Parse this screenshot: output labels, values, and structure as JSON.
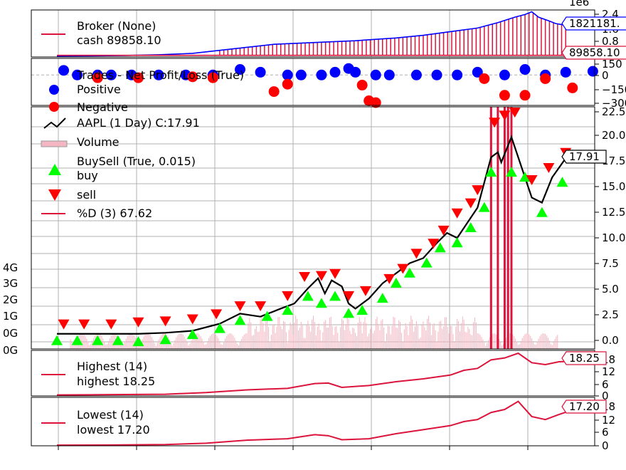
{
  "chart_data": {
    "type": "line",
    "header_label": "1e6",
    "colors": {
      "crimson": "#dc143c",
      "blue": "#0000ff",
      "red": "#ff0000",
      "lime": "#00ff00",
      "black": "#000000",
      "volume_bar": "#f4b6c2",
      "grid": "#b0b0b0"
    },
    "broker": {
      "legend": [
        "Broker (None)",
        "cash 89858.10"
      ],
      "value_tag": "1821181.",
      "cash_tag": "89858.10",
      "yticks": [
        "2.4",
        "1.6",
        "0.8"
      ],
      "value_points": [
        [
          0,
          0.05
        ],
        [
          50,
          0.06
        ],
        [
          100,
          0.08
        ],
        [
          150,
          0.12
        ],
        [
          200,
          0.2
        ],
        [
          260,
          0.45
        ],
        [
          320,
          0.7
        ],
        [
          380,
          0.8
        ],
        [
          440,
          0.9
        ],
        [
          500,
          1.05
        ],
        [
          540,
          1.2
        ],
        [
          580,
          1.4
        ],
        [
          620,
          1.6
        ],
        [
          650,
          1.9
        ],
        [
          675,
          2.2
        ],
        [
          690,
          2.35
        ],
        [
          700,
          2.5
        ],
        [
          710,
          2.2
        ],
        [
          725,
          2.0
        ],
        [
          735,
          1.85
        ],
        [
          750,
          1.75
        ]
      ],
      "cash_points": [
        [
          0,
          0.09
        ],
        [
          750,
          0.09
        ]
      ]
    },
    "trades": {
      "legend": [
        "Trades - Net Profit/Loss (True)",
        "Positive",
        "Negative"
      ],
      "yticks": [
        "150",
        "0",
        "−150",
        "−300"
      ],
      "positive_points": [
        [
          10,
          50
        ],
        [
          30,
          0
        ],
        [
          60,
          0
        ],
        [
          80,
          0
        ],
        [
          110,
          0
        ],
        [
          150,
          0
        ],
        [
          190,
          0
        ],
        [
          230,
          0
        ],
        [
          270,
          60
        ],
        [
          300,
          30
        ],
        [
          340,
          0
        ],
        [
          360,
          0
        ],
        [
          390,
          0
        ],
        [
          410,
          30
        ],
        [
          430,
          70
        ],
        [
          440,
          30
        ],
        [
          470,
          0
        ],
        [
          490,
          0
        ],
        [
          530,
          0
        ],
        [
          560,
          0
        ],
        [
          590,
          0
        ],
        [
          620,
          30
        ],
        [
          660,
          0
        ],
        [
          690,
          60
        ],
        [
          720,
          0
        ],
        [
          750,
          30
        ],
        [
          790,
          40
        ]
      ],
      "negative_points": [
        [
          60,
          -30
        ],
        [
          120,
          -30
        ],
        [
          200,
          -20
        ],
        [
          230,
          -30
        ],
        [
          320,
          -180
        ],
        [
          340,
          -100
        ],
        [
          450,
          -110
        ],
        [
          460,
          -280
        ],
        [
          470,
          -300
        ],
        [
          630,
          -40
        ],
        [
          660,
          -220
        ],
        [
          690,
          -220
        ],
        [
          720,
          -40
        ],
        [
          760,
          -140
        ]
      ]
    },
    "price": {
      "legend": [
        "AAPL (1 Day) C:17.91",
        "Volume",
        "BuySell (True, 0.015)",
        "buy",
        "sell",
        "%D (3) 67.62"
      ],
      "last_tag": "17.91",
      "yticks": [
        "22.5",
        "20.0",
        "17.5",
        "15.0",
        "12.5",
        "10.0",
        "7.5",
        "5.0",
        "2.5",
        "0.0"
      ],
      "volume_ticks": [
        "4G",
        "3G",
        "2G",
        "1G",
        "0G",
        "0G"
      ],
      "ylim": [
        -1,
        23
      ],
      "close": [
        [
          0,
          0.5
        ],
        [
          40,
          0.5
        ],
        [
          80,
          0.5
        ],
        [
          120,
          0.5
        ],
        [
          160,
          0.6
        ],
        [
          200,
          0.8
        ],
        [
          240,
          1.5
        ],
        [
          270,
          2.5
        ],
        [
          300,
          2.2
        ],
        [
          330,
          3.0
        ],
        [
          350,
          3.5
        ],
        [
          370,
          5.0
        ],
        [
          385,
          6.0
        ],
        [
          395,
          4.5
        ],
        [
          405,
          5.8
        ],
        [
          420,
          5.2
        ],
        [
          430,
          3.5
        ],
        [
          440,
          3.0
        ],
        [
          460,
          4.0
        ],
        [
          480,
          5.5
        ],
        [
          500,
          6.5
        ],
        [
          520,
          7.5
        ],
        [
          540,
          8.0
        ],
        [
          560,
          9.5
        ],
        [
          575,
          10.5
        ],
        [
          590,
          10.0
        ],
        [
          605,
          11.5
        ],
        [
          620,
          13.0
        ],
        [
          640,
          18.0
        ],
        [
          650,
          18.5
        ],
        [
          655,
          17.5
        ],
        [
          670,
          20.0
        ],
        [
          685,
          17.0
        ],
        [
          700,
          14.0
        ],
        [
          715,
          13.5
        ],
        [
          730,
          16.0
        ],
        [
          750,
          17.9
        ]
      ],
      "buy_points": [
        [
          0,
          -0.2
        ],
        [
          30,
          -0.2
        ],
        [
          60,
          -0.2
        ],
        [
          90,
          -0.2
        ],
        [
          120,
          -0.3
        ],
        [
          160,
          -0.1
        ],
        [
          200,
          0.4
        ],
        [
          240,
          1.0
        ],
        [
          270,
          1.8
        ],
        [
          310,
          2.2
        ],
        [
          340,
          2.8
        ],
        [
          370,
          4.2
        ],
        [
          390,
          3.5
        ],
        [
          410,
          4.2
        ],
        [
          430,
          2.5
        ],
        [
          450,
          2.8
        ],
        [
          480,
          4.0
        ],
        [
          500,
          5.5
        ],
        [
          520,
          6.5
        ],
        [
          545,
          7.5
        ],
        [
          565,
          9.0
        ],
        [
          590,
          9.5
        ],
        [
          610,
          11.0
        ],
        [
          630,
          13.0
        ],
        [
          640,
          16.5
        ],
        [
          670,
          16.5
        ],
        [
          690,
          16.0
        ],
        [
          715,
          12.5
        ],
        [
          745,
          15.5
        ]
      ],
      "sell_points": [
        [
          10,
          1.5
        ],
        [
          40,
          1.5
        ],
        [
          80,
          1.5
        ],
        [
          120,
          1.7
        ],
        [
          160,
          1.8
        ],
        [
          200,
          2.0
        ],
        [
          235,
          2.5
        ],
        [
          270,
          3.3
        ],
        [
          300,
          3.3
        ],
        [
          340,
          4.3
        ],
        [
          365,
          6.2
        ],
        [
          390,
          6.3
        ],
        [
          410,
          6.5
        ],
        [
          430,
          4.3
        ],
        [
          455,
          4.8
        ],
        [
          490,
          6.0
        ],
        [
          510,
          7.0
        ],
        [
          530,
          8.5
        ],
        [
          555,
          9.5
        ],
        [
          570,
          10.8
        ],
        [
          590,
          12.5
        ],
        [
          610,
          13.5
        ],
        [
          620,
          14.8
        ],
        [
          645,
          21.5
        ],
        [
          660,
          22.2
        ],
        [
          675,
          22.5
        ],
        [
          700,
          15.8
        ],
        [
          725,
          17.0
        ],
        [
          750,
          18.5
        ]
      ],
      "percent_d_spikes": [
        [
          640,
          -1
        ],
        [
          640,
          23
        ],
        [
          650,
          -1
        ],
        [
          650,
          23
        ],
        [
          660,
          -1
        ],
        [
          660,
          23
        ],
        [
          665,
          -1
        ],
        [
          665,
          23
        ],
        [
          670,
          23
        ],
        [
          670,
          -1
        ]
      ]
    },
    "highest": {
      "legend": [
        "Highest (14)",
        "highest 18.25"
      ],
      "value_tag": "18.25",
      "yticks": [
        "18",
        "12",
        "6",
        "0"
      ],
      "ylim": [
        0,
        24
      ],
      "points": [
        [
          0,
          0.5
        ],
        [
          80,
          0.7
        ],
        [
          160,
          0.9
        ],
        [
          220,
          1.8
        ],
        [
          280,
          3.2
        ],
        [
          340,
          4.0
        ],
        [
          380,
          6.5
        ],
        [
          400,
          6.8
        ],
        [
          420,
          4.5
        ],
        [
          460,
          5.5
        ],
        [
          500,
          7.5
        ],
        [
          540,
          9.0
        ],
        [
          580,
          11.0
        ],
        [
          600,
          13.5
        ],
        [
          620,
          14.5
        ],
        [
          640,
          19.0
        ],
        [
          660,
          20.0
        ],
        [
          680,
          22.5
        ],
        [
          700,
          17.5
        ],
        [
          720,
          16.5
        ],
        [
          740,
          18.0
        ],
        [
          755,
          18.2
        ]
      ]
    },
    "lowest": {
      "legend": [
        "Lowest (14)",
        "lowest 17.20"
      ],
      "value_tag": "17.20",
      "yticks": [
        "18",
        "12",
        "6",
        "0"
      ],
      "ylim": [
        0,
        24
      ],
      "points": [
        [
          0,
          0.3
        ],
        [
          80,
          0.4
        ],
        [
          160,
          0.6
        ],
        [
          220,
          1.3
        ],
        [
          280,
          2.8
        ],
        [
          340,
          3.5
        ],
        [
          380,
          5.5
        ],
        [
          400,
          5.0
        ],
        [
          420,
          3.0
        ],
        [
          460,
          3.5
        ],
        [
          500,
          6.0
        ],
        [
          540,
          8.0
        ],
        [
          580,
          10.0
        ],
        [
          600,
          12.0
        ],
        [
          620,
          13.0
        ],
        [
          640,
          16.5
        ],
        [
          660,
          18.0
        ],
        [
          680,
          22.0
        ],
        [
          700,
          14.5
        ],
        [
          720,
          13.0
        ],
        [
          740,
          15.5
        ],
        [
          755,
          17.2
        ]
      ]
    }
  }
}
